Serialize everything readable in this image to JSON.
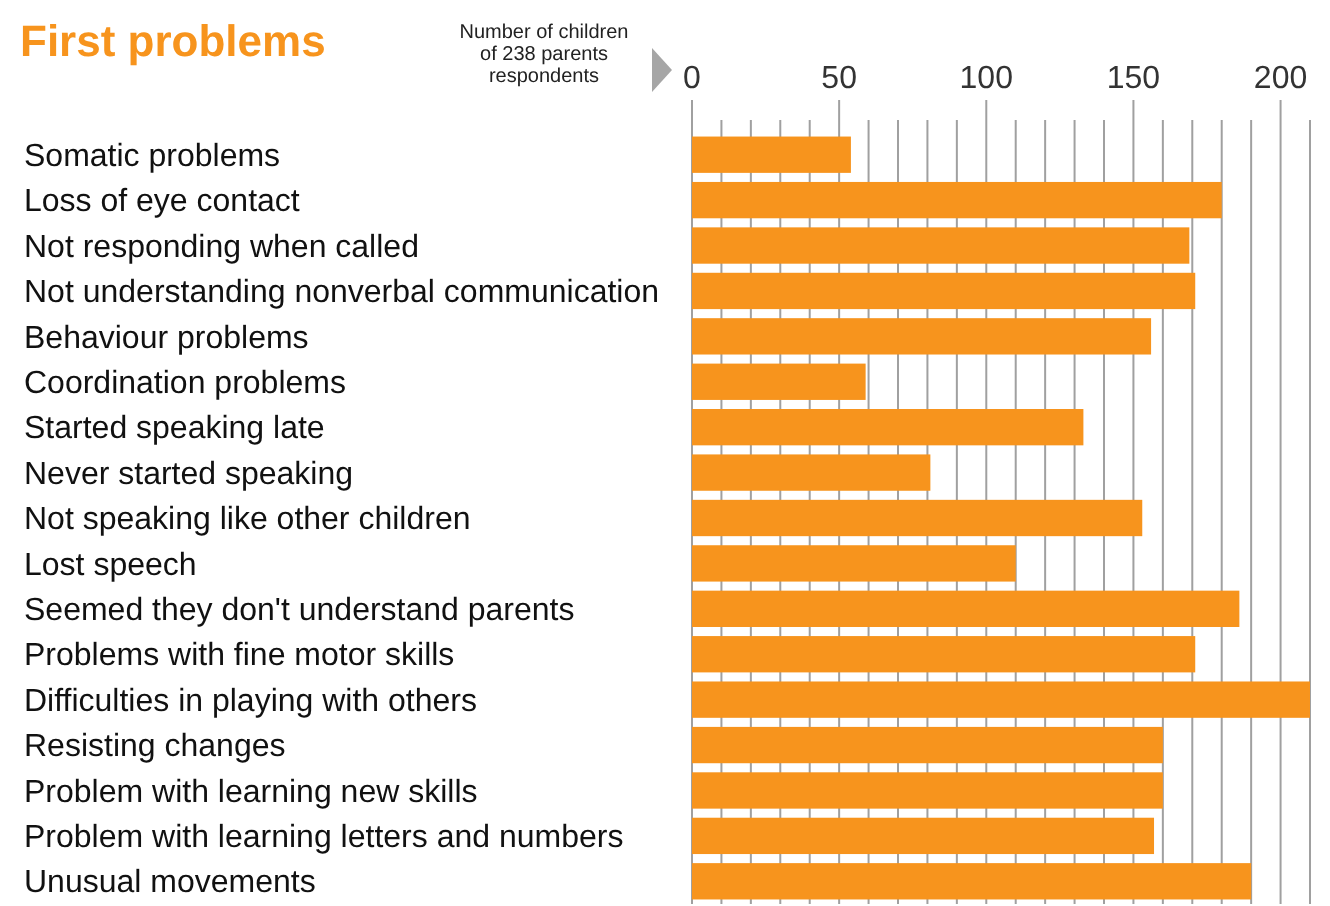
{
  "chart_data": {
    "type": "bar",
    "orientation": "horizontal",
    "title": "First problems",
    "xlabel": "Number of children of 238 parents respondents",
    "categories": [
      "Somatic problems",
      "Loss of eye contact",
      "Not responding when called",
      "Not understanding nonverbal communication",
      "Behaviour problems",
      "Coordination problems",
      "Started speaking late",
      "Never started speaking",
      "Not speaking like other children",
      "Lost speech",
      "Seemed they don't understand parents",
      "Problems with fine motor skills",
      "Difficulties in playing with others",
      "Resisting changes",
      "Problem with learning new skills",
      "Problem with learning letters and numbers",
      "Unusual movements"
    ],
    "values": [
      54,
      180,
      169,
      171,
      156,
      59,
      133,
      81,
      153,
      110,
      186,
      171,
      210,
      160,
      160,
      157,
      190
    ],
    "color": "#f7941d",
    "xlim": [
      0,
      210
    ],
    "xticks": [
      0,
      {
        "value": 10,
        "label": null
      },
      {
        "value": 20,
        "label": null
      },
      {
        "value": 30,
        "label": null
      },
      {
        "value": 40,
        "label": null
      },
      50,
      {
        "value": 60,
        "label": null
      },
      {
        "value": 70,
        "label": null
      },
      {
        "value": 80,
        "label": null
      },
      {
        "value": 90,
        "label": null
      },
      100,
      {
        "value": 110,
        "label": null
      },
      {
        "value": 120,
        "label": null
      },
      {
        "value": 130,
        "label": null
      },
      {
        "value": 140,
        "label": null
      },
      150,
      {
        "value": 160,
        "label": null
      },
      {
        "value": 170,
        "label": null
      },
      {
        "value": 180,
        "label": null
      },
      {
        "value": 190,
        "label": null
      },
      200,
      {
        "value": 210,
        "label": null
      }
    ],
    "grid": "x"
  }
}
